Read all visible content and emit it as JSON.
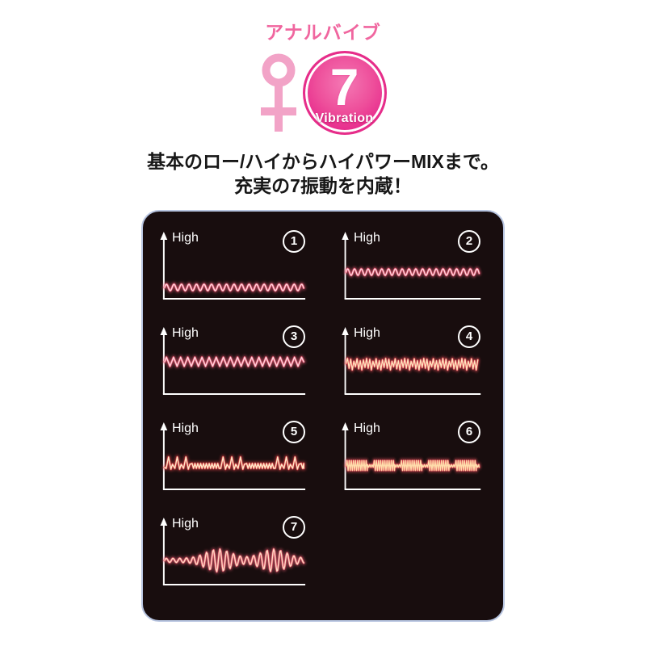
{
  "header": {
    "product_label": "アナルバイブ",
    "female_symbol": "♀",
    "badge": {
      "number": "7",
      "caption": "Vibration"
    },
    "colors": {
      "label_pink": "#f0669f",
      "symbol_pink": "#f2a3c7",
      "badge_ring_pink": "#e62d8a",
      "badge_center_pink": "#f479b4",
      "badge_edge_pink": "#e20f81"
    }
  },
  "headline": {
    "line1": "基本のロー/ハイからハイパワーMIXまで。",
    "line2": "充実の7振動を内蔵！"
  },
  "panel_colors": {
    "background": "#180d0e",
    "border": "#b7c4e0",
    "axis": "#ffffff"
  },
  "chart_data": [
    {
      "type": "line",
      "number": "1",
      "axis_label": "High",
      "pattern": "sine",
      "baseline": 72,
      "amplitude": 4,
      "period": 9.5,
      "glow_color": "#e45872",
      "core_color": "#ffd6dd"
    },
    {
      "type": "line",
      "number": "2",
      "axis_label": "High",
      "pattern": "sine",
      "baseline": 53,
      "amplitude": 4,
      "period": 9,
      "glow_color": "#e45872",
      "core_color": "#ffd6dd"
    },
    {
      "type": "line",
      "number": "3",
      "axis_label": "High",
      "pattern": "triangle",
      "baseline": 46,
      "amplitude": 5.5,
      "period": 9,
      "glow_color": "#e45872",
      "core_color": "#ffd6dd"
    },
    {
      "type": "line",
      "number": "4",
      "axis_label": "High",
      "pattern": "jagged",
      "baseline": 49,
      "amplitude": 7,
      "period": 4.2,
      "glow_color": "#e04a55",
      "core_color": "#ffe3bd"
    },
    {
      "type": "line",
      "number": "5",
      "axis_label": "High",
      "pattern": "pulse",
      "baseline": 57,
      "amplitude": 11,
      "period": 11,
      "glow_color": "#dc4348",
      "core_color": "#ffe9c8"
    },
    {
      "type": "line",
      "number": "6",
      "axis_label": "High",
      "pattern": "bursts",
      "baseline": 57,
      "amplitude": 6.5,
      "period": 2.8,
      "glow_color": "#e0515c",
      "core_color": "#ffddab"
    },
    {
      "type": "line",
      "number": "7",
      "axis_label": "High",
      "pattern": "crescendo",
      "baseline": 56,
      "amplitude": 2.5,
      "period": 8.5,
      "burst_amplitude": 11.5,
      "burst_centers": [
        68,
        138
      ],
      "glow_color": "#e25a6e",
      "core_color": "#ffd8c2"
    }
  ]
}
